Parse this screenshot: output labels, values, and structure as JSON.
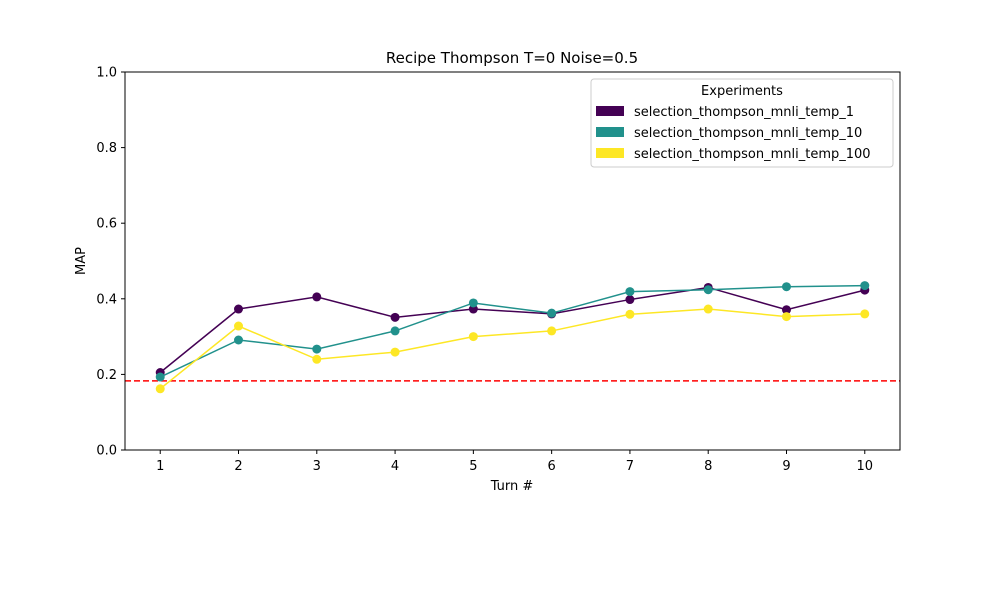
{
  "chart_data": {
    "type": "line",
    "title": "Recipe Thompson T=0 Noise=0.5",
    "xlabel": "Turn #",
    "ylabel": "MAP",
    "x": [
      1,
      2,
      3,
      4,
      5,
      6,
      7,
      8,
      9,
      10
    ],
    "xlim": [
      0.55,
      10.45
    ],
    "ylim": [
      0,
      1
    ],
    "yticks": [
      0.0,
      0.2,
      0.4,
      0.6,
      0.8,
      1.0
    ],
    "ytick_labels": [
      "0.0",
      "0.2",
      "0.4",
      "0.6",
      "0.8",
      "1.0"
    ],
    "xtick_labels": [
      "1",
      "2",
      "3",
      "4",
      "5",
      "6",
      "7",
      "8",
      "9",
      "10"
    ],
    "grid": false,
    "baseline": {
      "y": 0.183,
      "color": "#ff0000",
      "style": "dashed"
    },
    "legend": {
      "title": "Experiments",
      "placement": "top-right"
    },
    "series": [
      {
        "name": "selection_thompson_mnli_temp_1",
        "color": "#440154",
        "values": [
          0.205,
          0.373,
          0.405,
          0.351,
          0.373,
          0.36,
          0.398,
          0.43,
          0.371,
          0.423
        ]
      },
      {
        "name": "selection_thompson_mnli_temp_10",
        "color": "#21918c",
        "values": [
          0.193,
          0.291,
          0.267,
          0.315,
          0.389,
          0.362,
          0.419,
          0.424,
          0.432,
          0.435
        ]
      },
      {
        "name": "selection_thompson_mnli_temp_100",
        "color": "#fde725",
        "values": [
          0.162,
          0.328,
          0.24,
          0.259,
          0.3,
          0.315,
          0.359,
          0.373,
          0.353,
          0.36
        ]
      }
    ]
  }
}
